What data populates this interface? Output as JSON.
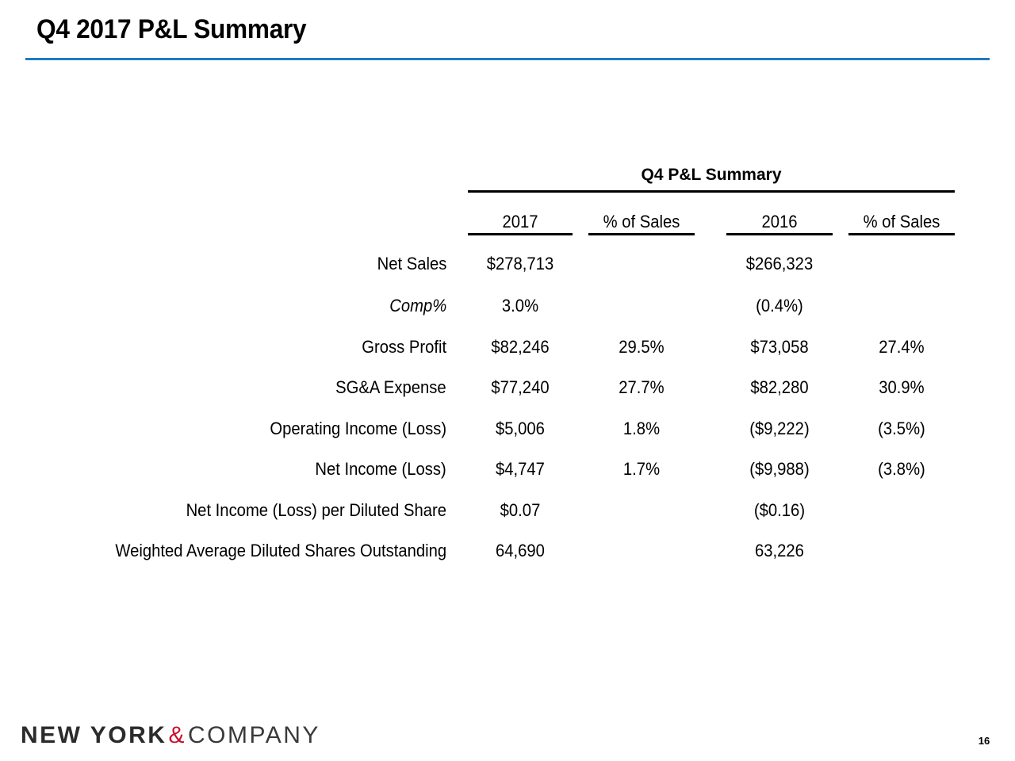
{
  "slide": {
    "title": "Q4 2017 P&L Summary",
    "accent_color": "#1f7bc0",
    "page_number": "16"
  },
  "table": {
    "heading": "Q4 P&L Summary",
    "columns": [
      "2017",
      "% of Sales",
      "2016",
      "% of Sales"
    ],
    "rows": [
      {
        "label": "Net Sales",
        "italic": false,
        "values": [
          "$278,713",
          "",
          "$266,323",
          ""
        ]
      },
      {
        "label": "Comp%",
        "italic": true,
        "values": [
          "3.0%",
          "",
          "(0.4%)",
          ""
        ]
      },
      {
        "label": "Gross Profit",
        "italic": false,
        "values": [
          "$82,246",
          "29.5%",
          "$73,058",
          "27.4%"
        ]
      },
      {
        "label": "SG&A Expense",
        "italic": false,
        "values": [
          "$77,240",
          "27.7%",
          "$82,280",
          "30.9%"
        ]
      },
      {
        "label": "Operating Income (Loss)",
        "italic": false,
        "values": [
          "$5,006",
          "1.8%",
          "($9,222)",
          "(3.5%)"
        ]
      },
      {
        "label": "Net Income (Loss)",
        "italic": false,
        "values": [
          "$4,747",
          "1.7%",
          "($9,988)",
          "(3.8%)"
        ]
      },
      {
        "label": "Net Income (Loss) per Diluted Share",
        "italic": false,
        "values": [
          "$0.07",
          "",
          "($0.16)",
          ""
        ]
      },
      {
        "label": "Weighted Average Diluted Shares Outstanding",
        "italic": false,
        "values": [
          "64,690",
          "",
          "63,226",
          ""
        ]
      }
    ]
  },
  "footer": {
    "logo_part1": "NEW YORK",
    "logo_amp": "&",
    "logo_part2": "COMPANY"
  }
}
